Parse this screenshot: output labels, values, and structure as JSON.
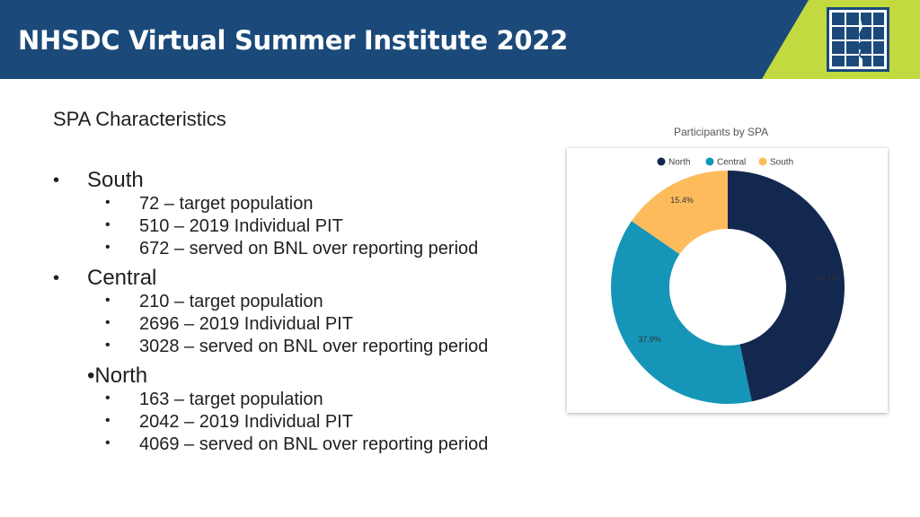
{
  "header": {
    "title": "NHSDC Virtual Summer Institute 2022",
    "colors": {
      "bar": "#1b4a7a",
      "accent": "#c2d940"
    },
    "logo_icon": "window-face-logo-icon"
  },
  "section_title": "SPA Characteristics",
  "groups": [
    {
      "name": "South",
      "items": [
        "72 – target population",
        "510 – 2019 Individual PIT",
        "672 – served on BNL over reporting period"
      ]
    },
    {
      "name": "Central",
      "items": [
        "210 – target population",
        "2696 – 2019 Individual PIT",
        "3028 – served on BNL over reporting period"
      ]
    },
    {
      "name": "North",
      "items": [
        "163 – target population",
        "2042 – 2019 Individual PIT",
        "4069 – served on BNL over reporting period"
      ]
    }
  ],
  "chart_data": {
    "type": "pie",
    "donut": true,
    "title": "Participants by SPA",
    "legend_position": "top",
    "categories": [
      "North",
      "Central",
      "South"
    ],
    "values": [
      46.7,
      37.9,
      15.4
    ],
    "labels": [
      "46.7%",
      "37.9%",
      "15.4%"
    ],
    "colors": [
      "#13284f",
      "#1596b8",
      "#fdbb5c"
    ]
  }
}
